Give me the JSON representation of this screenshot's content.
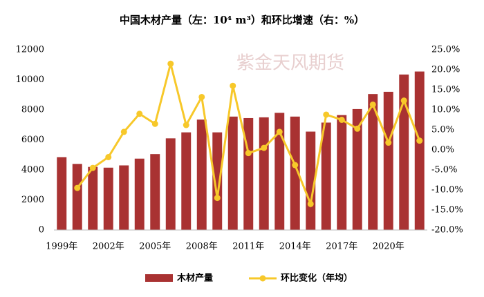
{
  "chart_data": {
    "type": "bar_line",
    "title": "中国木材产量（左：10⁴ m³）和环比增速（右：%）",
    "watermark": "紫金天风期货",
    "categories": [
      "1999年",
      null,
      null,
      "2002年",
      null,
      null,
      "2005年",
      null,
      null,
      "2008年",
      null,
      null,
      "2011年",
      null,
      null,
      "2014年",
      null,
      null,
      "2017年",
      null,
      null,
      "2020年",
      null,
      null
    ],
    "series": [
      {
        "name": "木材产量",
        "color": "#a93232",
        "type": "bar",
        "values": [
          4850,
          4400,
          4200,
          4150,
          4300,
          4750,
          5050,
          6100,
          6500,
          7350,
          6500,
          7550,
          7450,
          7500,
          7800,
          7550,
          6550,
          7150,
          7650,
          8050,
          9050,
          9200,
          10350,
          10550
        ]
      },
      {
        "name": "环比变化（年均）",
        "color": "#f7c82a",
        "type": "line",
        "axis": "y2",
        "values": [
          null,
          -9.5,
          -4.5,
          -1.8,
          4.5,
          9.0,
          6.5,
          21.5,
          6.2,
          13.2,
          -12.0,
          16.0,
          -0.8,
          0.5,
          4.5,
          -3.8,
          -13.5,
          8.8,
          7.5,
          5.3,
          11.3,
          1.8,
          12.3,
          2.3
        ]
      }
    ],
    "ylim": [
      0,
      12000
    ],
    "yticks": [
      0,
      2000,
      4000,
      6000,
      8000,
      10000,
      12000
    ],
    "y2lim": [
      -20,
      25
    ],
    "y2ticks": [
      {
        "value": -20,
        "label": "-20.0%"
      },
      {
        "value": -15,
        "label": "-15.0%"
      },
      {
        "value": -10,
        "label": "-10.0%"
      },
      {
        "value": -5,
        "label": "-5.0%"
      },
      {
        "value": 0,
        "label": "0.0%"
      },
      {
        "value": 5,
        "label": "5.0%"
      },
      {
        "value": 10,
        "label": "10.0%"
      },
      {
        "value": 15,
        "label": "15.0%"
      },
      {
        "value": 20,
        "label": "20.0%"
      },
      {
        "value": 25,
        "label": "25.0%"
      }
    ],
    "legend": "bottom"
  }
}
